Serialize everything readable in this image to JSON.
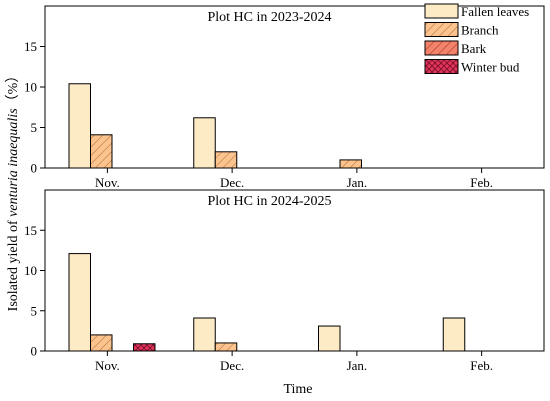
{
  "chart_data": [
    {
      "type": "bar",
      "title": "Plot HC in 2023-2024",
      "categories": [
        "Nov.",
        "Dec.",
        "Jan.",
        "Feb."
      ],
      "ylim": [
        0,
        20
      ],
      "yticks": [
        0,
        5,
        10,
        15
      ],
      "grid": false,
      "series": [
        {
          "name": "Fallen leaves",
          "values": [
            10.4,
            6.2,
            0,
            0
          ]
        },
        {
          "name": "Branch",
          "values": [
            4.1,
            2.0,
            1.0,
            0
          ]
        },
        {
          "name": "Bark",
          "values": [
            0,
            0,
            0,
            0
          ]
        },
        {
          "name": "Winter bud",
          "values": [
            0,
            0,
            0,
            0
          ]
        }
      ]
    },
    {
      "type": "bar",
      "title": "Plot HC in 2024-2025",
      "categories": [
        "Nov.",
        "Dec.",
        "Jan.",
        "Feb."
      ],
      "ylim": [
        0,
        20
      ],
      "yticks": [
        0,
        5,
        10,
        15
      ],
      "grid": false,
      "series": [
        {
          "name": "Fallen leaves",
          "values": [
            12.1,
            4.1,
            3.1,
            4.1
          ]
        },
        {
          "name": "Branch",
          "values": [
            2.0,
            1.0,
            0,
            0
          ]
        },
        {
          "name": "Bark",
          "values": [
            0,
            0,
            0,
            0
          ]
        },
        {
          "name": "Winter bud",
          "values": [
            0.9,
            0,
            0,
            0
          ]
        }
      ]
    }
  ],
  "axes": {
    "ylabel_prefix": "Isolated yield of ",
    "ylabel_species": "venturia inaequalis",
    "ylabel_suffix": "（%）",
    "xlabel": "Time"
  },
  "legend": {
    "position": "top-right",
    "items": [
      {
        "name": "Fallen leaves",
        "fill": "#fdebc5",
        "pattern": "none"
      },
      {
        "name": "Branch",
        "fill": "#fbc48f",
        "pattern": "hatch"
      },
      {
        "name": "Bark",
        "fill": "#f2826a",
        "pattern": "hatch"
      },
      {
        "name": "Winter bud",
        "fill": "#e0345a",
        "pattern": "crosshatch"
      }
    ]
  },
  "colors": {
    "fallen_leaves": "#fdebc5",
    "branch": "#fbc48f",
    "bark": "#f2826a",
    "winter_bud": "#e0345a",
    "stroke": "#000000"
  }
}
